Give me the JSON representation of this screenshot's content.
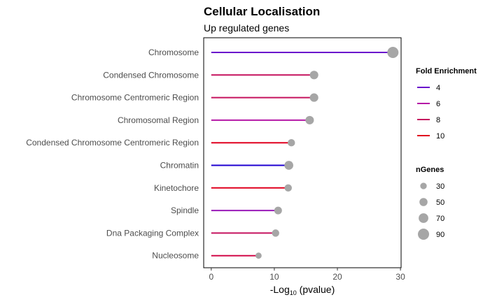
{
  "chart_data": {
    "type": "lollipop",
    "title": "Cellular Localisation",
    "subtitle": "Up regulated genes",
    "xlabel": {
      "pre": "-Log",
      "sub": "10",
      "post": " (pvalue)"
    },
    "xlim": [
      -1.2,
      30.1
    ],
    "xticks": [
      0,
      10,
      20,
      30
    ],
    "categories": [
      {
        "label": "Chromosome",
        "value": 28.8,
        "fold_enrichment": 3.6,
        "color": "#6a0dcc",
        "ngenes": 90
      },
      {
        "label": "Condensed Chromosome",
        "value": 16.3,
        "fold_enrichment": 8.0,
        "color": "#c5125e",
        "ngenes": 55
      },
      {
        "label": "Chromosome Centromeric Region",
        "value": 16.3,
        "fold_enrichment": 8.0,
        "color": "#c5125e",
        "ngenes": 55
      },
      {
        "label": "Chromosomal Region",
        "value": 15.6,
        "fold_enrichment": 7.0,
        "color": "#b516a6",
        "ngenes": 55
      },
      {
        "label": "Condensed Chromosome Centromeric Region",
        "value": 12.7,
        "fold_enrichment": 9.8,
        "color": "#e0001e",
        "ngenes": 40
      },
      {
        "label": "Chromatin",
        "value": 12.3,
        "fold_enrichment": 3.0,
        "color": "#1f00d1",
        "ngenes": 60
      },
      {
        "label": "Kinetochore",
        "value": 12.2,
        "fold_enrichment": 9.8,
        "color": "#e0001e",
        "ngenes": 40
      },
      {
        "label": "Spindle",
        "value": 10.6,
        "fold_enrichment": 6.0,
        "color": "#9a1ab8",
        "ngenes": 45
      },
      {
        "label": "Dna Packaging Complex",
        "value": 10.2,
        "fold_enrichment": 8.0,
        "color": "#c5125e",
        "ngenes": 40
      },
      {
        "label": "Nucleosome",
        "value": 7.5,
        "fold_enrichment": 8.8,
        "color": "#d20a48",
        "ngenes": 25
      }
    ],
    "point_color": "#a6a6a6",
    "legend_color": {
      "title": "Fold Enrichment",
      "entries": [
        {
          "label": "4",
          "color": "#6a0dcc"
        },
        {
          "label": "6",
          "color": "#b516a6"
        },
        {
          "label": "8",
          "color": "#c5125e"
        },
        {
          "label": "10",
          "color": "#e0001e"
        }
      ]
    },
    "legend_size": {
      "title": "nGenes",
      "entries": [
        {
          "label": "30",
          "value": 30
        },
        {
          "label": "50",
          "value": 50
        },
        {
          "label": "70",
          "value": 70
        },
        {
          "label": "90",
          "value": 90
        }
      ]
    },
    "grid": false,
    "legend_position": "right"
  }
}
